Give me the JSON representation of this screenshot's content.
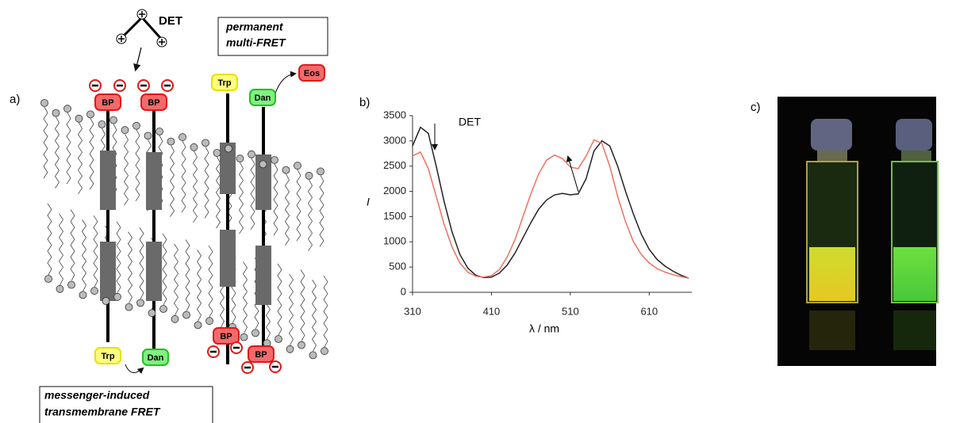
{
  "figure": {
    "panel_labels": [
      "a)",
      "b)",
      "c)"
    ],
    "det": "DET",
    "permanent_box": [
      "permanent",
      "multi-FRET"
    ],
    "messenger_box": [
      "messenger-induced",
      "transmembrane FRET"
    ],
    "tags": [
      "BP",
      "BP",
      "Trp",
      "Dan",
      "Eos",
      "Trp",
      "Dan",
      "BP",
      "BP"
    ]
  },
  "chart_data": {
    "type": "line",
    "y_label": "I",
    "x_label": "λ / nm",
    "annotation": "DET",
    "x": [
      310,
      320,
      330,
      340,
      350,
      360,
      370,
      380,
      390,
      400,
      410,
      420,
      430,
      440,
      450,
      460,
      470,
      480,
      490,
      500,
      510,
      520,
      530,
      540,
      550,
      560,
      570,
      580,
      590,
      600,
      610,
      620,
      630,
      640,
      650,
      660
    ],
    "series": [
      {
        "color": "#222222",
        "values": [
          2900,
          3270,
          3150,
          2500,
          1800,
          1200,
          750,
          480,
          340,
          290,
          300,
          380,
          540,
          780,
          1080,
          1380,
          1650,
          1830,
          1930,
          1960,
          1930,
          1950,
          2250,
          2800,
          3000,
          2900,
          2500,
          2000,
          1550,
          1150,
          850,
          650,
          520,
          420,
          340,
          280
        ]
      },
      {
        "color": "#f07060",
        "values": [
          2700,
          2780,
          2450,
          1900,
          1350,
          900,
          580,
          400,
          320,
          300,
          330,
          450,
          700,
          1050,
          1500,
          1950,
          2350,
          2620,
          2720,
          2650,
          2480,
          2450,
          2700,
          3020,
          2950,
          2500,
          1900,
          1400,
          1000,
          750,
          580,
          470,
          400,
          350,
          310,
          280
        ]
      }
    ],
    "xlim": [
      310,
      664
    ],
    "ylim": [
      0,
      3500
    ],
    "xticks": [
      310,
      410,
      510,
      610
    ],
    "yticks": [
      0,
      500,
      1000,
      1500,
      2000,
      2500,
      3000,
      3500
    ]
  }
}
